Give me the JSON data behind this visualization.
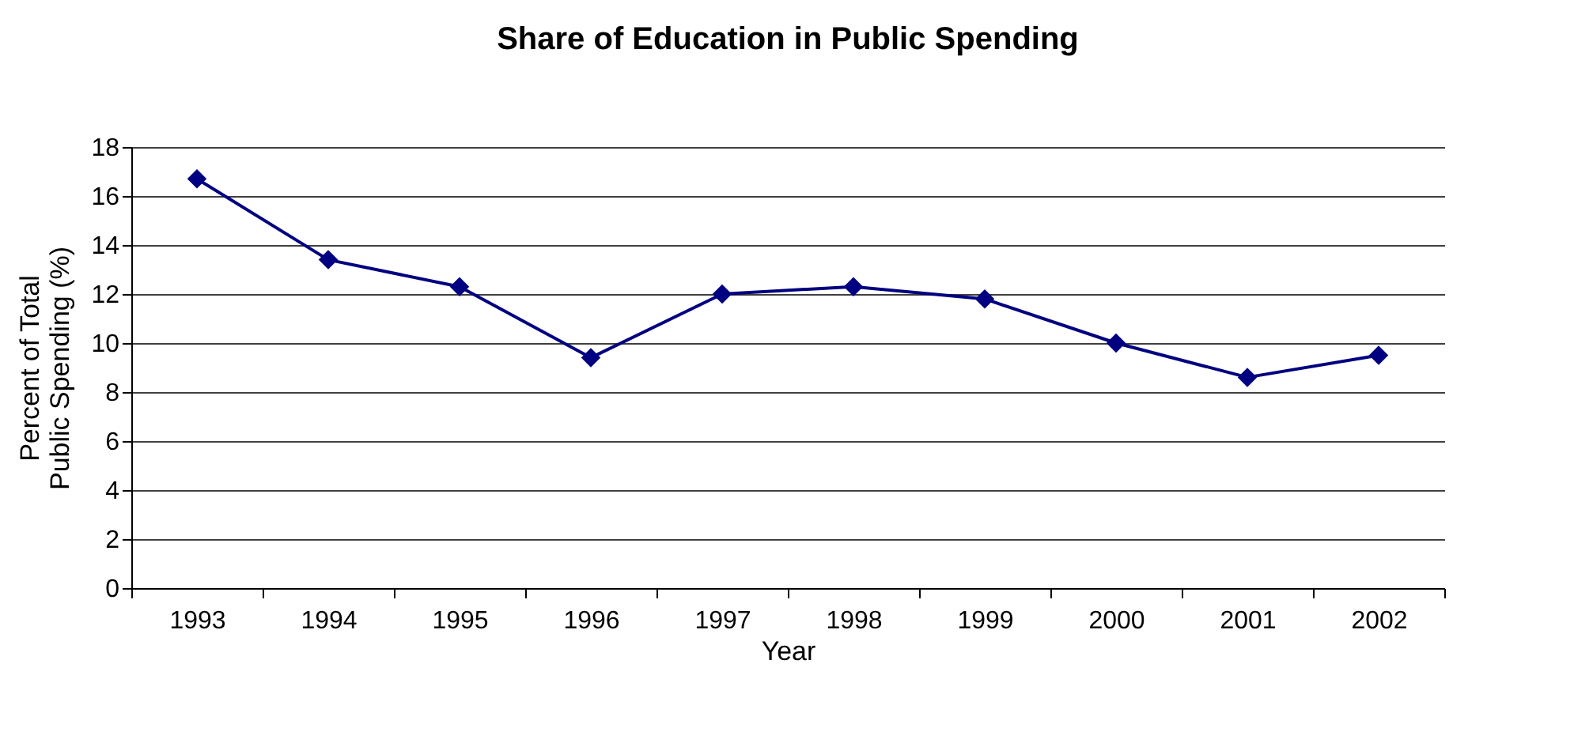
{
  "chart_data": {
    "type": "line",
    "title": "Share of Education in Public Spending",
    "xlabel": "Year",
    "ylabel": "Percent of Total Public Spending (%)",
    "categories": [
      "1993",
      "1994",
      "1995",
      "1996",
      "1997",
      "1998",
      "1999",
      "2000",
      "2001",
      "2002"
    ],
    "series": [
      {
        "color": "#000080",
        "values": [
          16.7,
          13.4,
          12.3,
          9.4,
          12.0,
          12.3,
          11.8,
          10.0,
          8.6,
          9.5
        ]
      }
    ],
    "ylim": [
      0,
      18
    ],
    "yticks": [
      0,
      2,
      4,
      6,
      8,
      10,
      12,
      14,
      16,
      18
    ],
    "grid": "y",
    "marker": "diamond",
    "line_style": "solid",
    "legend": false
  }
}
